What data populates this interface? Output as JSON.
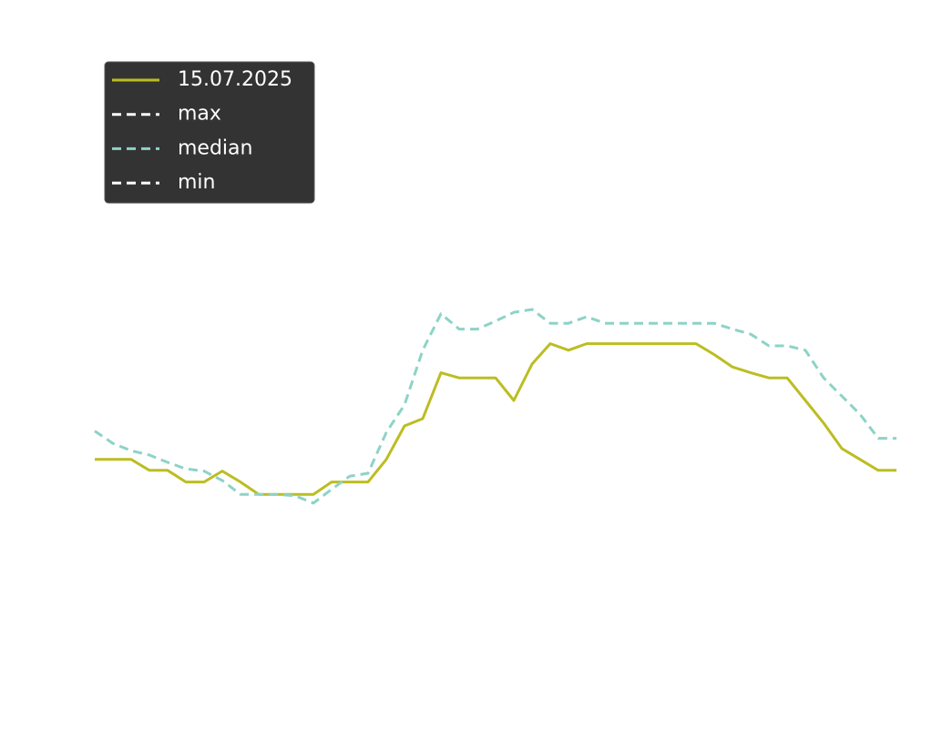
{
  "chart_data": {
    "type": "line",
    "x": [
      0,
      1,
      2,
      3,
      4,
      5,
      6,
      7,
      8,
      9,
      10,
      11,
      12,
      13,
      14,
      15,
      16,
      17,
      18,
      19,
      20,
      21,
      22,
      23,
      24,
      25,
      26,
      27,
      28,
      29,
      30,
      31,
      32,
      33,
      34,
      35,
      36,
      37,
      38,
      39,
      40,
      41,
      42,
      43,
      44
    ],
    "xlim": [
      0,
      44
    ],
    "ylim": [
      0,
      100
    ],
    "legend": "upper left",
    "series": [
      {
        "name": "15.07.2025",
        "color": "#bcbd22",
        "dash": false,
        "values": [
          36.9,
          36.9,
          36.9,
          35.4,
          35.4,
          33.8,
          33.8,
          35.3,
          33.8,
          32.1,
          32.1,
          32.1,
          32.1,
          33.8,
          33.8,
          33.8,
          36.9,
          41.5,
          42.5,
          48.8,
          48.1,
          48.1,
          48.1,
          45,
          50,
          52.8,
          51.9,
          52.8,
          52.8,
          52.8,
          52.8,
          52.8,
          52.8,
          52.8,
          51.3,
          49.6,
          48.8,
          48.1,
          48.1,
          45,
          41.9,
          38.4,
          36.9,
          35.4,
          35.4
        ]
      },
      {
        "name": "max",
        "color": "#ffffff",
        "dash": true,
        "values": [
          null,
          null,
          null,
          null,
          null,
          null,
          null,
          null,
          null,
          null,
          null,
          null,
          null,
          null,
          null,
          null,
          null,
          null,
          null,
          null,
          null,
          null,
          null,
          null,
          null,
          null,
          null,
          null,
          null,
          null,
          null,
          null,
          null,
          null,
          null,
          null,
          null,
          null,
          null,
          null,
          null,
          null,
          null,
          null,
          null
        ]
      },
      {
        "name": "median",
        "color": "#8dd3c7",
        "dash": true,
        "values": [
          40.8,
          39.1,
          38.1,
          37.5,
          36.5,
          35.6,
          35.3,
          34,
          32.1,
          32.1,
          32.1,
          31.9,
          30.9,
          32.8,
          34.6,
          35,
          40.6,
          44.4,
          51.9,
          56.9,
          54.8,
          54.8,
          55.9,
          57.1,
          57.5,
          55.6,
          55.6,
          56.5,
          55.6,
          55.6,
          55.6,
          55.6,
          55.6,
          55.6,
          55.6,
          54.8,
          54.1,
          52.5,
          52.5,
          51.9,
          48.1,
          45.6,
          43.1,
          39.8,
          39.8
        ]
      },
      {
        "name": "min",
        "color": "#ffffff",
        "dash": true,
        "values": [
          null,
          null,
          null,
          null,
          null,
          null,
          null,
          null,
          null,
          null,
          null,
          null,
          null,
          null,
          null,
          null,
          null,
          null,
          null,
          null,
          null,
          null,
          null,
          null,
          null,
          null,
          null,
          null,
          null,
          null,
          null,
          null,
          null,
          null,
          null,
          null,
          null,
          null,
          null,
          null,
          null,
          null,
          null,
          null,
          null
        ]
      }
    ]
  }
}
